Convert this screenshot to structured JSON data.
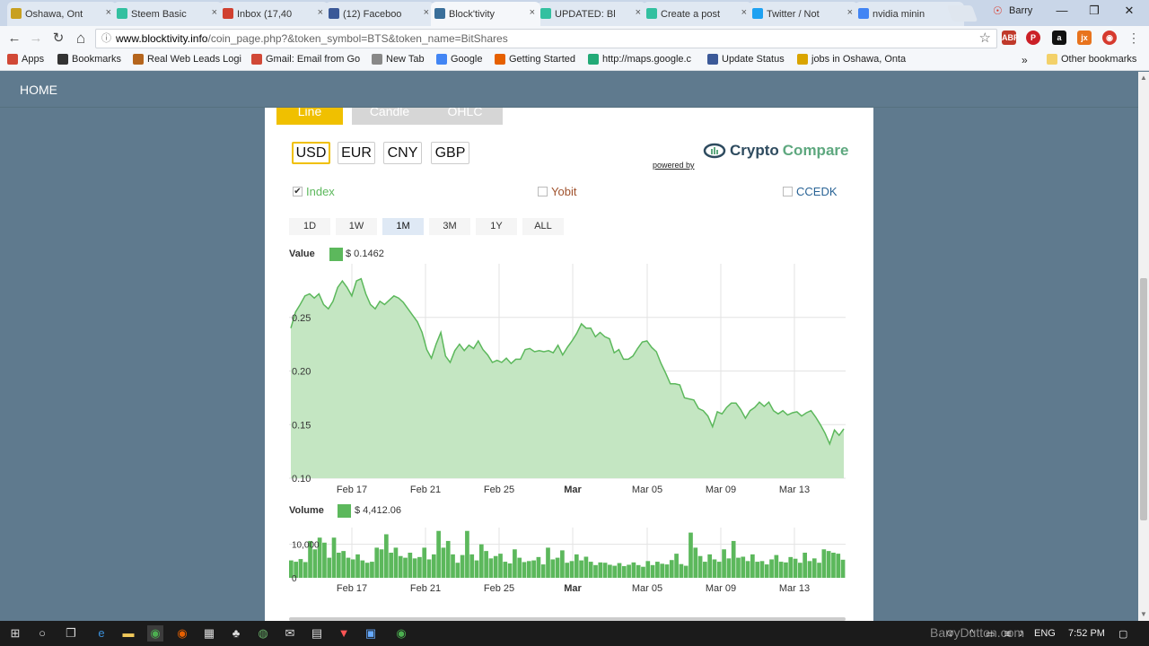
{
  "browser": {
    "tabs": [
      {
        "label": "Oshawa, Ont",
        "icon": "weather-icon",
        "color": "#c8a020"
      },
      {
        "label": "Steem Basic",
        "icon": "steem-icon",
        "color": "#33c0a0"
      },
      {
        "label": "Inbox (17,40",
        "icon": "gmail-icon",
        "color": "#d04030"
      },
      {
        "label": "(12) Faceboo",
        "icon": "facebook-icon",
        "color": "#3b5998"
      },
      {
        "label": "Block'tivity",
        "icon": "blocktivity-icon",
        "color": "#3a6f9a"
      },
      {
        "label": "UPDATED: Bl",
        "icon": "steem-icon",
        "color": "#33c0a0"
      },
      {
        "label": "Create a post",
        "icon": "steem-icon",
        "color": "#33c0a0"
      },
      {
        "label": "Twitter / Not",
        "icon": "twitter-icon",
        "color": "#1da1f2"
      },
      {
        "label": "nvidia minin",
        "icon": "google-icon",
        "color": "#4285f4"
      }
    ],
    "active_tab": 4,
    "tab_close": "×",
    "user": "Barry",
    "window_min": "—",
    "window_restore": "❐",
    "window_close": "✕",
    "nav_back": "←",
    "nav_forward": "→",
    "nav_reload": "↻",
    "nav_home": "⌂",
    "url_host": "www.blocktivity.info",
    "url_path": "/coin_page.php?&token_symbol=BTS&token_name=BitShares",
    "star": "☆"
  },
  "bookmarks": {
    "items": [
      {
        "label": "Apps",
        "icon": "apps-icon"
      },
      {
        "label": "Bookmarks",
        "icon": "star-icon"
      },
      {
        "label": "Real Web Leads Logi",
        "icon": "leads-icon"
      },
      {
        "label": "Gmail: Email from Go",
        "icon": "gmail-icon"
      },
      {
        "label": "New Tab",
        "icon": "page-icon"
      },
      {
        "label": "Google",
        "icon": "google-icon"
      },
      {
        "label": "Getting Started",
        "icon": "firefox-icon"
      },
      {
        "label": "http://maps.google.c",
        "icon": "maps-icon"
      },
      {
        "label": "Update Status",
        "icon": "facebook-icon"
      },
      {
        "label": "jobs in Oshawa, Onta",
        "icon": "ie-icon"
      }
    ],
    "overflow": "»",
    "other": "Other bookmarks"
  },
  "page": {
    "nav_home": "HOME",
    "chart_types": [
      "Line",
      "Candle",
      "OHLC"
    ],
    "selected_chart_type": "Line",
    "currencies": [
      "USD",
      "EUR",
      "CNY",
      "GBP"
    ],
    "selected_currency": "USD",
    "powered_by": "powered by",
    "brand_a": "Crypto",
    "brand_b": "Compare",
    "sources": [
      {
        "label": "Index",
        "checked": true,
        "color": "#5cb85c"
      },
      {
        "label": "Yobit",
        "checked": false,
        "color": "#a0522d"
      },
      {
        "label": "CCEDK",
        "checked": false,
        "color": "#2a6496"
      }
    ],
    "check_mark": "✔",
    "ranges": [
      "1D",
      "1W",
      "1M",
      "3M",
      "1Y",
      "ALL"
    ],
    "selected_range": "1M",
    "value_label": "Value",
    "value_readout": "$ 0.1462",
    "volume_label": "Volume",
    "volume_readout": "$ 4,412.06",
    "accent": "#5cb85c"
  },
  "chart_data": [
    {
      "type": "area",
      "ylabel": "",
      "ylim": [
        0.1,
        0.3
      ],
      "yticks": [
        "0.10",
        "0.15",
        "0.20",
        "0.25"
      ],
      "xticks": [
        "Feb 17",
        "Feb 21",
        "Feb 25",
        "Mar",
        "Mar 05",
        "Mar 09",
        "Mar 13"
      ],
      "xlim": [
        "Feb 14",
        "Mar 14"
      ],
      "grid": true,
      "color": "#5cb85c",
      "series": [
        {
          "values": [
            0.24,
            0.255,
            0.262,
            0.27,
            0.272,
            0.268,
            0.272,
            0.262,
            0.258,
            0.265,
            0.278,
            0.284,
            0.278,
            0.27,
            0.284,
            0.286,
            0.272,
            0.262,
            0.258,
            0.265,
            0.262,
            0.266,
            0.27,
            0.268,
            0.264,
            0.258,
            0.252,
            0.246,
            0.236,
            0.22,
            0.212,
            0.225,
            0.236,
            0.214,
            0.208,
            0.219,
            0.225,
            0.219,
            0.224,
            0.221,
            0.228,
            0.22,
            0.215,
            0.208,
            0.21,
            0.208,
            0.212,
            0.207,
            0.211,
            0.211,
            0.22,
            0.221,
            0.218,
            0.219,
            0.218,
            0.219,
            0.217,
            0.224,
            0.215,
            0.222,
            0.228,
            0.235,
            0.244,
            0.24,
            0.24,
            0.232,
            0.236,
            0.232,
            0.23,
            0.217,
            0.22,
            0.211,
            0.211,
            0.214,
            0.221,
            0.227,
            0.228,
            0.222,
            0.218,
            0.207,
            0.198,
            0.188,
            0.188,
            0.187,
            0.175,
            0.174,
            0.173,
            0.165,
            0.163,
            0.158,
            0.148,
            0.162,
            0.16,
            0.166,
            0.17,
            0.17,
            0.164,
            0.156,
            0.163,
            0.166,
            0.171,
            0.167,
            0.171,
            0.163,
            0.16,
            0.163,
            0.159,
            0.161,
            0.162,
            0.158,
            0.161,
            0.163,
            0.157,
            0.15,
            0.142,
            0.132,
            0.145,
            0.14,
            0.146
          ]
        }
      ]
    },
    {
      "type": "bar",
      "ylim": [
        0,
        15000
      ],
      "yticks": [
        "0",
        "10,000"
      ],
      "xticks": [
        "Feb 17",
        "Feb 21",
        "Feb 25",
        "Mar",
        "Mar 05",
        "Mar 09",
        "Mar 13"
      ],
      "color": "#5cb85c",
      "series": [
        {
          "values": [
            5200,
            4800,
            5600,
            4700,
            11000,
            8500,
            12000,
            10500,
            6000,
            12000,
            7500,
            8000,
            6000,
            5500,
            7000,
            5200,
            4500,
            4800,
            9000,
            8500,
            13000,
            7500,
            9000,
            6500,
            6000,
            7500,
            5800,
            6200,
            9000,
            5500,
            7000,
            14000,
            9000,
            11000,
            7000,
            4500,
            6800,
            14000,
            7000,
            5200,
            10000,
            8000,
            5800,
            6500,
            7200,
            4800,
            4300,
            8500,
            6000,
            4700,
            5000,
            5200,
            6200,
            4000,
            9000,
            5500,
            6000,
            8200,
            4500,
            5000,
            7000,
            5200,
            6300,
            4800,
            3800,
            4600,
            4500,
            3900,
            3600,
            4400,
            3500,
            3900,
            4600,
            3800,
            3300,
            5000,
            3800,
            4800,
            4200,
            4000,
            5300,
            7200,
            4100,
            3600,
            13500,
            9000,
            6500,
            4800,
            7000,
            5500,
            4800,
            8500,
            5800,
            11000,
            6000,
            6300,
            5000,
            7000,
            4800,
            5000,
            4000,
            5500,
            6800,
            4800,
            4600,
            6200,
            5700,
            4500,
            7500,
            5000,
            5800,
            4500,
            8500,
            8000,
            7500,
            7200,
            5400
          ]
        }
      ]
    }
  ],
  "taskbar": {
    "lang": "ENG",
    "time": "7:52 PM",
    "watermark": "BarryDutton.com"
  }
}
